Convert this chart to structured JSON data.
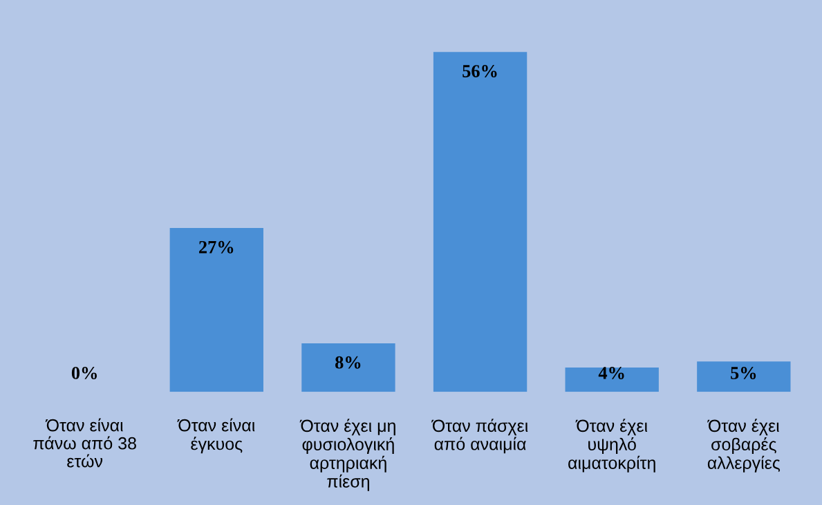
{
  "chart_data": {
    "type": "bar",
    "categories": [
      "Όταν είναι πάνω από 38 ετών",
      "Όταν είναι έγκυος",
      "Όταν έχει μη φυσιολογική αρτηριακή πίεση",
      "Όταν πάσχει από αναιμία",
      "Όταν έχει υψηλό αιματοκρίτη",
      "Όταν έχει σοβαρές αλλεργίες"
    ],
    "values": [
      0,
      27,
      8,
      56,
      4,
      5
    ],
    "value_labels": [
      "0%",
      "27%",
      "8%",
      "56%",
      "4%",
      "5%"
    ],
    "color": "#4a8fd6"
  }
}
